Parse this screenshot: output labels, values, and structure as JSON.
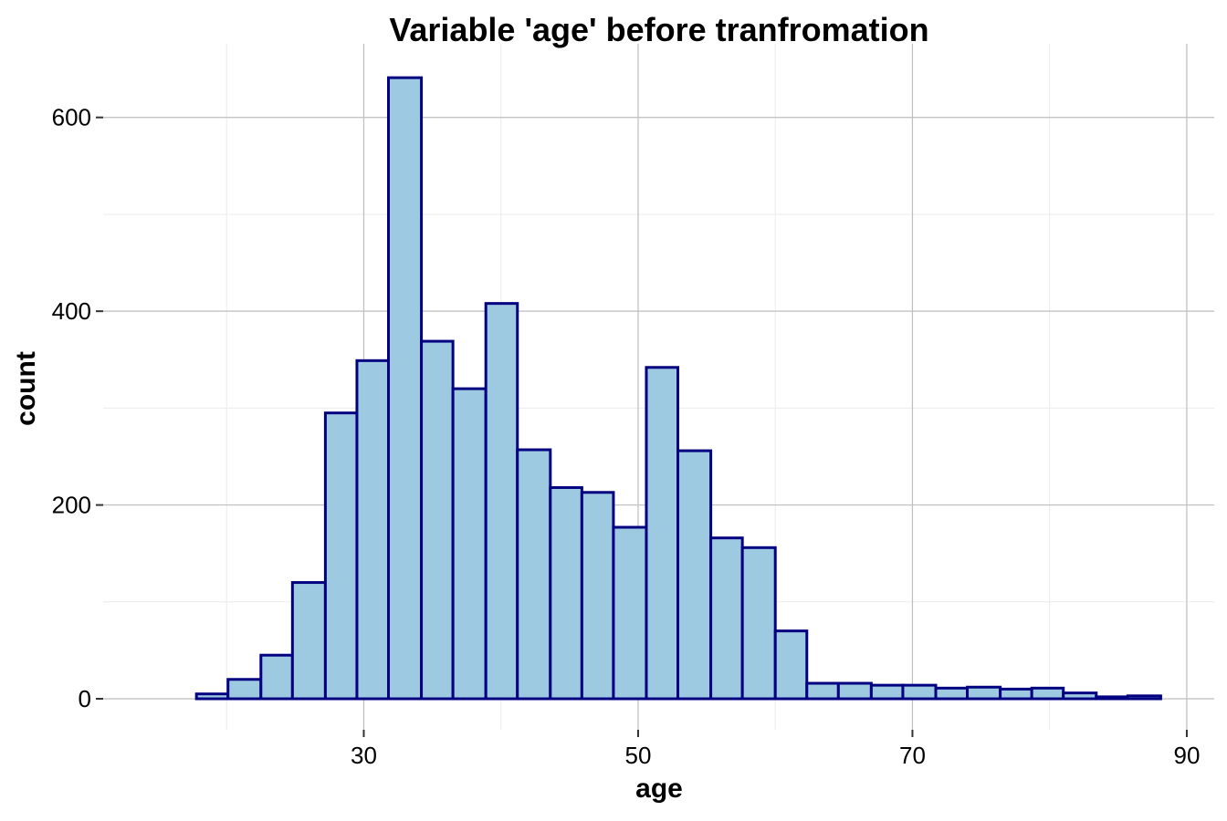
{
  "chart_data": {
    "type": "bar",
    "title": "Variable 'age' before tranfromation",
    "xlabel": "age",
    "ylabel": "count",
    "x_bin_edges": [
      17.8,
      20.1,
      22.5,
      24.8,
      27.2,
      29.5,
      31.8,
      34.2,
      36.5,
      38.9,
      41.2,
      43.6,
      45.9,
      48.2,
      50.6,
      52.9,
      55.3,
      57.6,
      60.0,
      62.3,
      64.6,
      67.0,
      69.3,
      71.7,
      74.0,
      76.4,
      78.7,
      81.0,
      83.4,
      85.7,
      88.1
    ],
    "values": [
      5,
      20,
      45,
      120,
      295,
      349,
      641,
      369,
      320,
      408,
      257,
      218,
      213,
      177,
      342,
      256,
      166,
      156,
      70,
      16,
      16,
      14,
      14,
      11,
      12,
      10,
      11,
      6,
      2,
      3
    ],
    "xlim": [
      11.0,
      92.0
    ],
    "ylim": [
      -32,
      676
    ],
    "x_ticks": [
      30,
      50,
      70,
      90
    ],
    "x_minor_gridlines": [
      20,
      40,
      60,
      80
    ],
    "y_ticks": [
      0,
      200,
      400,
      600
    ],
    "y_minor_gridlines": [
      100,
      300,
      500
    ],
    "grid": true,
    "legend": "none",
    "colors": {
      "bar_fill": "#9ecae1",
      "bar_outline": "#000080",
      "major_grid": "#bebebe",
      "minor_grid": "#ebebeb",
      "text": "#000000",
      "tick_mark": "#333333"
    }
  }
}
